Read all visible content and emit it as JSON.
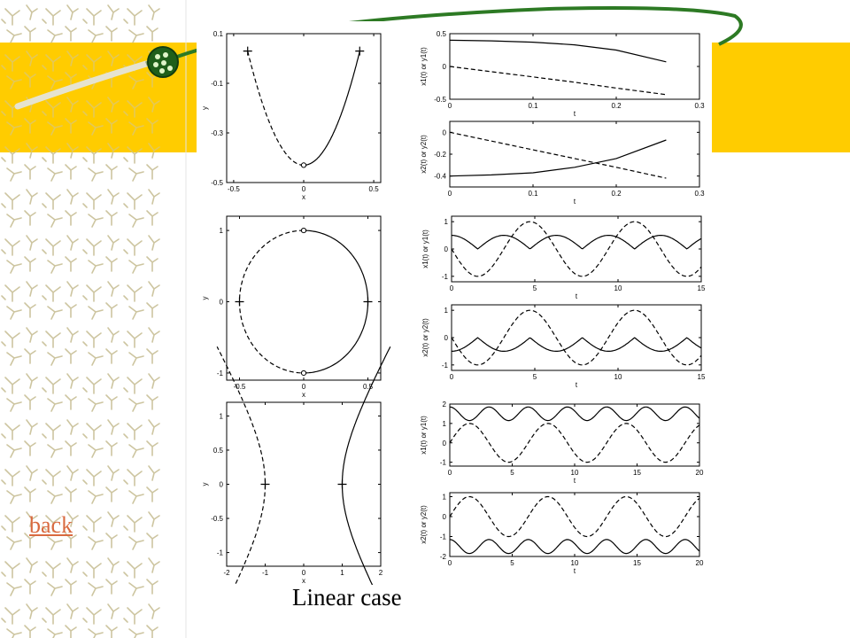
{
  "caption": "Linear case",
  "back_label": "back",
  "colors": {
    "accent_band": "#ffcc00",
    "swoosh_green": "#2d7a24",
    "link": "#d96a40",
    "pattern": "#cdc5a0"
  },
  "icons": {
    "orb": "green-orb-icon"
  },
  "chart_data": [
    {
      "type": "line",
      "id": "phase-1",
      "xlabel": "x",
      "ylabel": "y",
      "xlim": [
        -0.55,
        0.55
      ],
      "ylim": [
        -0.5,
        0.1
      ],
      "xticks": [
        "-0.5",
        "0",
        "0.5"
      ],
      "yticks": [
        "0.1",
        "-0.1",
        "-0.3",
        "-0.5"
      ],
      "series": [
        {
          "values": "x from -0.4 to 0.4, parabola with min -0.43 at x=0, endpoints at y=0.03"
        }
      ],
      "markers": [
        {
          "x": -0.4,
          "y": 0.03,
          "symbol": "+"
        },
        {
          "x": 0.4,
          "y": 0.03,
          "symbol": "+"
        },
        {
          "x": 0,
          "y": -0.43,
          "symbol": "o"
        }
      ]
    },
    {
      "type": "line",
      "id": "time-1a",
      "xlabel": "t",
      "ylabel": "x1(t) or y1(t)",
      "xlim": [
        0,
        0.3
      ],
      "ylim": [
        -0.5,
        0.5
      ],
      "xticks": [
        "0",
        "0.1",
        "0.2",
        "0.3"
      ],
      "yticks": [
        "0.5",
        "0",
        "-0.5"
      ],
      "series": [
        {
          "x": [
            0,
            0.05,
            0.1,
            0.15,
            0.2,
            0.26
          ],
          "values": [
            0.4,
            0.39,
            0.37,
            0.33,
            0.25,
            0.07
          ]
        },
        {
          "x": [
            0,
            0.05,
            0.1,
            0.15,
            0.2,
            0.26
          ],
          "values": [
            0.0,
            -0.08,
            -0.16,
            -0.24,
            -0.33,
            -0.43
          ]
        }
      ]
    },
    {
      "type": "line",
      "id": "time-1b",
      "xlabel": "t",
      "ylabel": "x2(t) or y2(t)",
      "xlim": [
        0,
        0.3
      ],
      "ylim": [
        -0.5,
        0.1
      ],
      "xticks": [
        "0",
        "0.1",
        "0.2",
        "0.3"
      ],
      "yticks": [
        "0",
        "-0.2",
        "-0.4"
      ],
      "series": [
        {
          "x": [
            0,
            0.05,
            0.1,
            0.15,
            0.2,
            0.26
          ],
          "values": [
            -0.4,
            -0.39,
            -0.37,
            -0.32,
            -0.24,
            -0.07
          ]
        },
        {
          "x": [
            0,
            0.05,
            0.1,
            0.15,
            0.2,
            0.26
          ],
          "values": [
            0.0,
            -0.08,
            -0.16,
            -0.24,
            -0.32,
            -0.42
          ]
        }
      ]
    },
    {
      "type": "line",
      "id": "phase-2",
      "xlabel": "x",
      "ylabel": "y",
      "xlim": [
        -0.6,
        0.6
      ],
      "ylim": [
        -1.1,
        1.2
      ],
      "xticks": [
        "-0.5",
        "0",
        "0.5"
      ],
      "yticks": [
        "1",
        "0",
        "-1"
      ],
      "series": [
        {
          "values": "ellipse with semi-axes 0.5 (x) and 1 (y)"
        }
      ],
      "markers": [
        {
          "x": -0.5,
          "y": 0,
          "symbol": "+"
        },
        {
          "x": 0.5,
          "y": 0,
          "symbol": "+"
        },
        {
          "x": 0,
          "y": 1,
          "symbol": "o"
        },
        {
          "x": 0,
          "y": -1,
          "symbol": "o"
        }
      ]
    },
    {
      "type": "line",
      "id": "time-2a",
      "xlabel": "t",
      "ylabel": "x1(t) or y1(t)",
      "xlim": [
        0,
        15
      ],
      "ylim": [
        -1.2,
        1.2
      ],
      "xticks": [
        "0",
        "5",
        "10",
        "15"
      ],
      "yticks": [
        "1",
        "0",
        "-1"
      ],
      "series": [
        {
          "values": "0.5*|cos(t)|, period pi"
        },
        {
          "values": "-sin(t), dashed"
        }
      ]
    },
    {
      "type": "line",
      "id": "time-2b",
      "xlabel": "t",
      "ylabel": "x2(t) or y2(t)",
      "xlim": [
        0,
        15
      ],
      "ylim": [
        -1.2,
        1.2
      ],
      "xticks": [
        "0",
        "5",
        "10",
        "15"
      ],
      "yticks": [
        "1",
        "0",
        "-1"
      ],
      "series": [
        {
          "values": "-0.5*|cos(t)|, period pi"
        },
        {
          "values": "-sin(t), dashed"
        }
      ]
    },
    {
      "type": "line",
      "id": "phase-3",
      "xlabel": "x",
      "ylabel": "y",
      "xlim": [
        -2,
        2
      ],
      "ylim": [
        -1.2,
        1.2
      ],
      "xticks": [
        "-2",
        "-1",
        "0",
        "1",
        "2"
      ],
      "yticks": [
        "1",
        "0.5",
        "0",
        "-0.5",
        "-1"
      ],
      "series": [
        {
          "values": "right hyperbola branch x=cosh(s), y=sinh(s)"
        },
        {
          "values": "left hyperbola branch x=-cosh(s), y=sinh(s), dashed"
        }
      ],
      "markers": [
        {
          "x": -1,
          "y": 0,
          "symbol": "+"
        },
        {
          "x": 1,
          "y": 0,
          "symbol": "+"
        }
      ]
    },
    {
      "type": "line",
      "id": "time-3a",
      "xlabel": "t",
      "ylabel": "x1(t) or y1(t)",
      "xlim": [
        0,
        20
      ],
      "ylim": [
        -1.2,
        2
      ],
      "xticks": [
        "0",
        "5",
        "10",
        "15",
        "20"
      ],
      "yticks": [
        "2",
        "1",
        "0",
        "-1"
      ],
      "series": [
        {
          "values": "1.5 + 0.35*cos(2t)"
        },
        {
          "values": "sin(t), dashed"
        }
      ]
    },
    {
      "type": "line",
      "id": "time-3b",
      "xlabel": "t",
      "ylabel": "x2(t) or y2(t)",
      "xlim": [
        0,
        20
      ],
      "ylim": [
        -2,
        1.2
      ],
      "xticks": [
        "0",
        "5",
        "10",
        "15",
        "20"
      ],
      "yticks": [
        "1",
        "0",
        "-1",
        "-2"
      ],
      "series": [
        {
          "values": "-1.5 + 0.35*cos(2t)"
        },
        {
          "values": "sin(t), dashed"
        }
      ]
    }
  ]
}
